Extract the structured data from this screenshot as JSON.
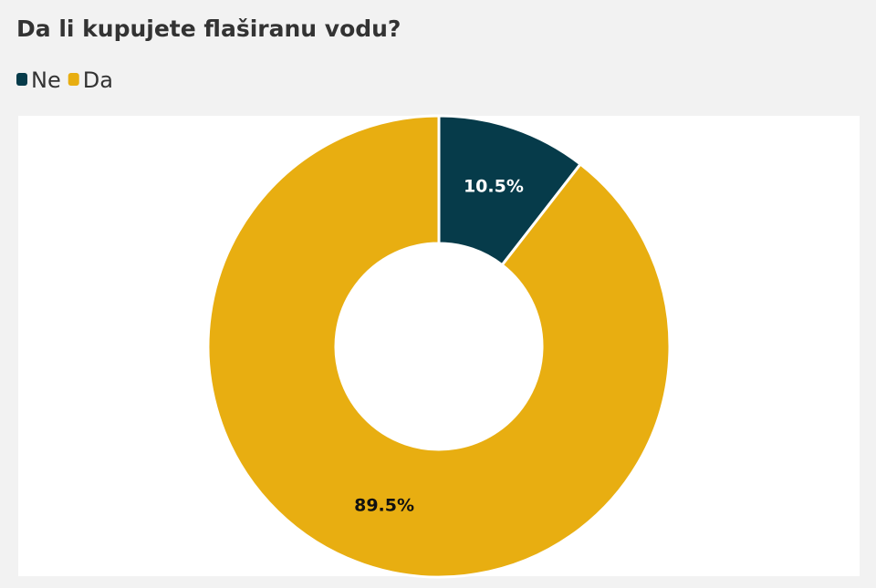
{
  "chart_data": {
    "type": "donut",
    "title": "Da li kupujete flaširanu vodu?",
    "categories": [
      "Ne",
      "Da"
    ],
    "values": [
      10.5,
      89.5
    ],
    "value_labels": [
      "10.5%",
      "89.5%"
    ],
    "colors": [
      "#063b4a",
      "#e8ae11"
    ],
    "legend": "top-left"
  }
}
